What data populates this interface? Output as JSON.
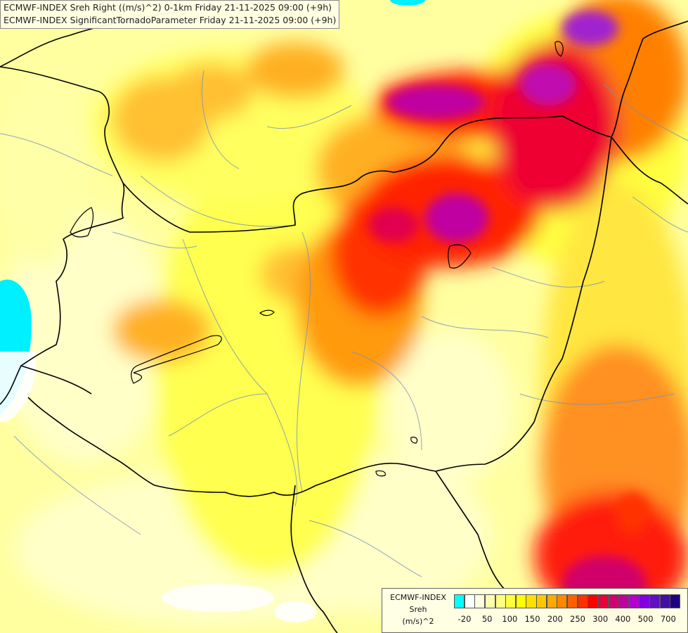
{
  "title": {
    "line1": "ECMWF-INDEX Sreh Right ((m/s)^2) 0-1km Friday 21-11-2025 09:00 (+9h)",
    "line2": "ECMWF-INDEX SignificantTornadoParameter Friday 21-11-2025 09:00 (+9h)"
  },
  "legend": {
    "line1": "ECMWF-INDEX",
    "line2": "Sreh",
    "line3": "(m/s)^2",
    "ticks": [
      "-20",
      "50",
      "100",
      "150",
      "200",
      "250",
      "300",
      "400",
      "500",
      "700"
    ],
    "colors": [
      "#00ffff",
      "#ffffff",
      "#ffffe0",
      "#ffffb0",
      "#ffff80",
      "#ffff40",
      "#ffff00",
      "#ffe000",
      "#ffc800",
      "#ffa800",
      "#ff8800",
      "#ff6000",
      "#ff3000",
      "#ff0000",
      "#e8003c",
      "#d00070",
      "#c000a0",
      "#b000d0",
      "#8000e0",
      "#6010c0",
      "#4010a0",
      "#200080"
    ]
  }
}
